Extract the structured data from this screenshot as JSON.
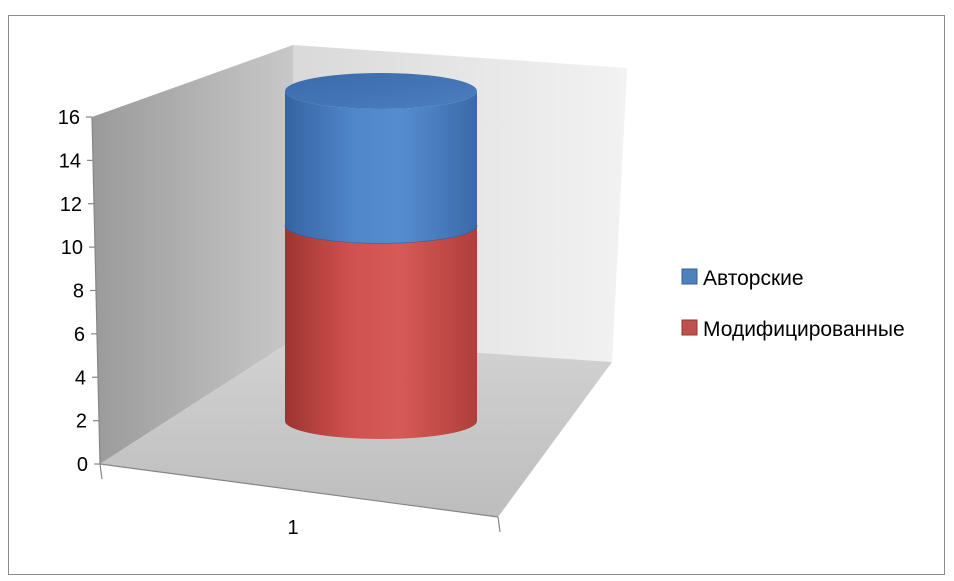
{
  "chart_data": {
    "type": "bar",
    "subtype": "3d-stacked-cylinder",
    "title": "",
    "xlabel": "",
    "ylabel": "",
    "categories": [
      "1"
    ],
    "ylim": [
      0,
      16
    ],
    "yticks": [
      "0",
      "2",
      "4",
      "6",
      "8",
      "10",
      "12",
      "14",
      "16"
    ],
    "series": [
      {
        "name": "Модифицированные",
        "values": [
          9.5
        ],
        "color": "#c0504d"
      },
      {
        "name": "Авторские",
        "values": [
          6.5
        ],
        "color": "#4f81bd"
      }
    ],
    "grid": false,
    "legend": "right"
  }
}
